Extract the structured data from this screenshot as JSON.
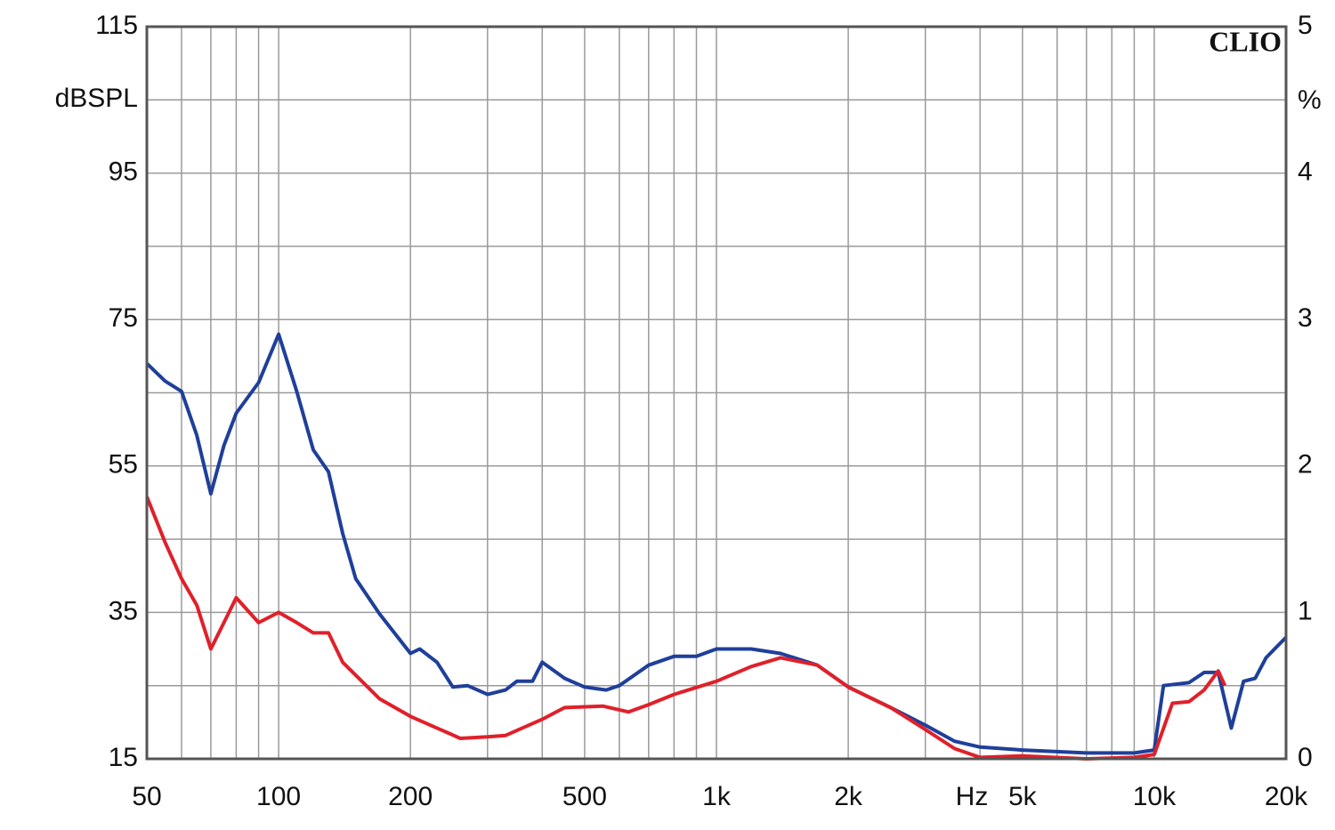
{
  "chart_data": {
    "type": "line",
    "annotation": "CLIO",
    "ylabel": "dBSPL",
    "y2label": "%",
    "xlabel": "Hz",
    "xscale": "log",
    "xlim": [
      50,
      20000
    ],
    "xticks": [
      50,
      100,
      200,
      500,
      {
        "value": 1000,
        "label": "1k"
      },
      {
        "value": 2000,
        "label": "2k"
      },
      {
        "value": 5000,
        "label": "5k"
      },
      {
        "value": 10000,
        "label": "10k"
      },
      {
        "value": 20000,
        "label": "20k"
      }
    ],
    "xminor": [
      60,
      70,
      80,
      90,
      300,
      400,
      600,
      700,
      800,
      900,
      3000,
      4000,
      6000,
      7000,
      8000,
      9000
    ],
    "ylim": [
      15,
      115
    ],
    "yticks": [
      15,
      35,
      55,
      75,
      95,
      115
    ],
    "yminor": [
      25,
      45,
      65,
      85,
      105
    ],
    "y2lim": [
      0,
      5
    ],
    "y2ticks": [
      0,
      1,
      2,
      3,
      4,
      5
    ],
    "grid": true,
    "series": [
      {
        "color": "#1f3f9a",
        "axis": "y2",
        "x": [
          50,
          55,
          60,
          65,
          70,
          75,
          80,
          90,
          100,
          110,
          120,
          130,
          140,
          150,
          170,
          200,
          210,
          230,
          250,
          270,
          300,
          330,
          350,
          380,
          400,
          450,
          500,
          560,
          600,
          700,
          800,
          900,
          1000,
          1200,
          1400,
          1700,
          2000,
          2500,
          3000,
          3500,
          4000,
          5000,
          7000,
          9000,
          10000,
          10500,
          12000,
          13000,
          14000,
          15000,
          16000,
          17000,
          18000,
          20000
        ],
        "values": [
          2.7,
          2.58,
          2.51,
          2.21,
          1.81,
          2.14,
          2.36,
          2.57,
          2.9,
          2.51,
          2.11,
          1.96,
          1.54,
          1.23,
          0.99,
          0.72,
          0.75,
          0.66,
          0.49,
          0.5,
          0.44,
          0.47,
          0.53,
          0.53,
          0.66,
          0.55,
          0.49,
          0.47,
          0.5,
          0.64,
          0.7,
          0.7,
          0.75,
          0.75,
          0.72,
          0.64,
          0.49,
          0.35,
          0.23,
          0.12,
          0.08,
          0.06,
          0.04,
          0.04,
          0.06,
          0.5,
          0.52,
          0.59,
          0.59,
          0.21,
          0.53,
          0.55,
          0.69,
          0.83
        ]
      },
      {
        "color": "#e0202a",
        "axis": "y2",
        "x": [
          50,
          55,
          60,
          65,
          70,
          75,
          80,
          90,
          100,
          110,
          120,
          130,
          140,
          170,
          200,
          230,
          260,
          300,
          330,
          400,
          450,
          550,
          630,
          700,
          800,
          1000,
          1200,
          1400,
          1700,
          2000,
          2500,
          3000,
          3500,
          4000,
          5000,
          7000,
          9000,
          10000,
          11000,
          12000,
          13000,
          14000,
          14500
        ],
        "values": [
          1.79,
          1.48,
          1.23,
          1.05,
          0.75,
          0.93,
          1.1,
          0.93,
          1.0,
          0.93,
          0.86,
          0.86,
          0.66,
          0.41,
          0.29,
          0.21,
          0.14,
          0.15,
          0.16,
          0.27,
          0.35,
          0.36,
          0.32,
          0.37,
          0.44,
          0.53,
          0.63,
          0.69,
          0.64,
          0.49,
          0.35,
          0.2,
          0.07,
          0.01,
          0.02,
          0.0,
          0.01,
          0.03,
          0.38,
          0.39,
          0.47,
          0.6,
          0.5
        ]
      }
    ]
  }
}
